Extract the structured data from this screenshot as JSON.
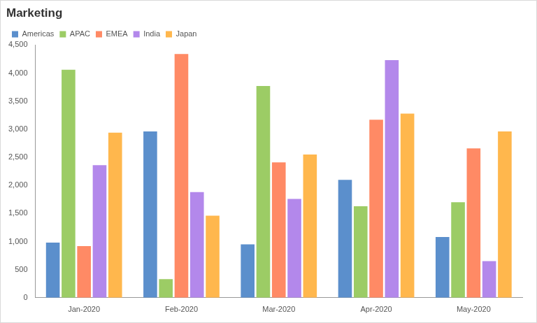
{
  "chart_data": {
    "type": "bar",
    "title": "Marketing",
    "categories": [
      "Jan-2020",
      "Feb-2020",
      "Mar-2020",
      "Apr-2020",
      "May-2020"
    ],
    "series": [
      {
        "name": "Americas",
        "color": "#5b8fcc",
        "values": [
          980,
          2960,
          950,
          2100,
          1080
        ]
      },
      {
        "name": "APAC",
        "color": "#9ccc65",
        "values": [
          4060,
          330,
          3770,
          1630,
          1700
        ]
      },
      {
        "name": "EMEA",
        "color": "#ff8a65",
        "values": [
          920,
          4340,
          2410,
          3170,
          2660
        ]
      },
      {
        "name": "India",
        "color": "#b388eb",
        "values": [
          2360,
          1880,
          1760,
          4230,
          650
        ]
      },
      {
        "name": "Japan",
        "color": "#ffb74d",
        "values": [
          2940,
          1460,
          2550,
          3280,
          2960
        ]
      }
    ],
    "ylim": [
      0,
      4500
    ],
    "yticks": [
      0,
      500,
      {
        "value": 1000,
        "label": "1,000"
      },
      {
        "value": 1500,
        "label": "1,500"
      },
      {
        "value": 2000,
        "label": "2,000"
      },
      {
        "value": 2500,
        "label": "2,500"
      },
      {
        "value": 3000,
        "label": "3,000"
      },
      {
        "value": 3500,
        "label": "3,500"
      },
      {
        "value": 4000,
        "label": "4,000"
      },
      {
        "value": 4500,
        "label": "4,500"
      }
    ],
    "grid": false,
    "legend": "top-left"
  }
}
